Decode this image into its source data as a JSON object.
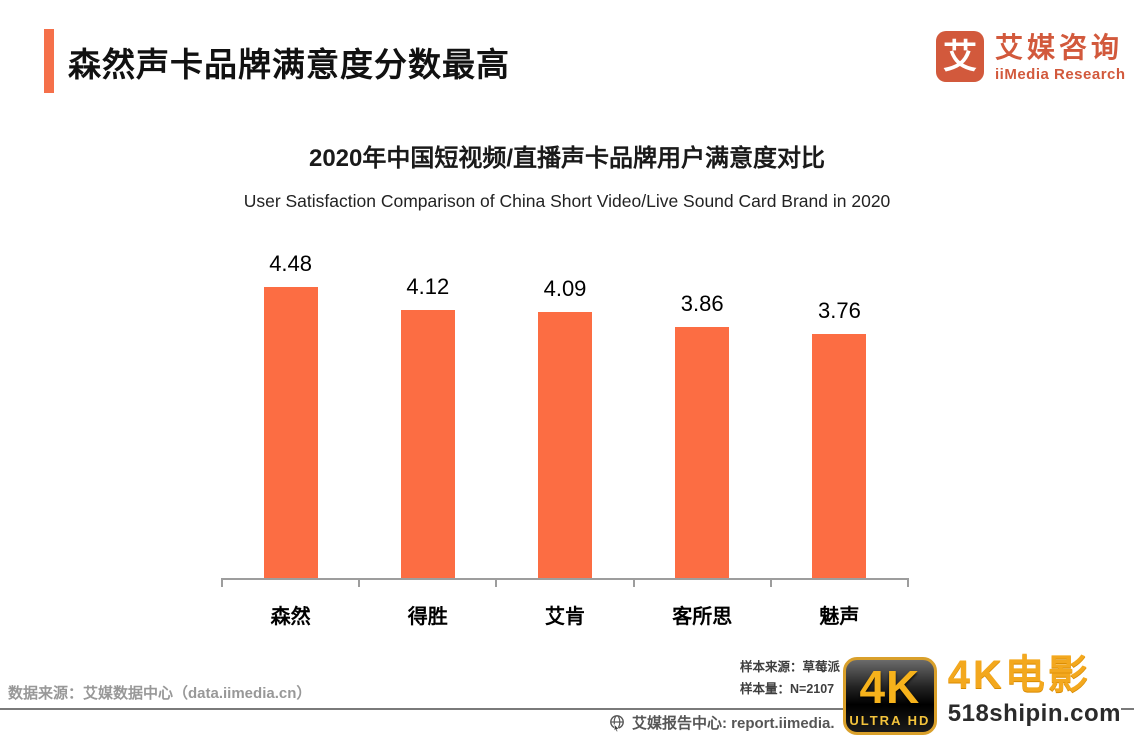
{
  "header": {
    "title": "森然声卡品牌满意度分数最高",
    "logo": {
      "glyph": "艾",
      "brand_cn": "艾媒咨询",
      "brand_en": "iiMedia Research"
    }
  },
  "chart_data": {
    "type": "bar",
    "title": "2020年中国短视频/直播声卡品牌用户满意度对比",
    "subtitle": "User Satisfaction Comparison of  China Short Video/Live Sound Card Brand in 2020",
    "categories": [
      "森然",
      "得胜",
      "艾肯",
      "客所思",
      "魅声"
    ],
    "values": [
      4.48,
      4.12,
      4.09,
      3.86,
      3.76
    ],
    "xlabel": "",
    "ylabel": "",
    "ylim": [
      0,
      4.48
    ],
    "grid": false,
    "legend": false,
    "bar_color": "#FC6D43",
    "value_labels_shown": true
  },
  "footer": {
    "data_source": "数据来源：艾媒数据中心（data.iimedia.cn）",
    "sample_source": "样本来源：草莓派",
    "sample_size": "样本量：N=2107",
    "report_center": "艾媒报告中心: report.iimedia."
  },
  "watermark": {
    "badge_top": "4K",
    "badge_bottom": "ULTRA HD",
    "title": "4K电影",
    "site": "518shipin.com"
  },
  "colors": {
    "accent": "#F5704A",
    "bar": "#FC6D43",
    "logo": "#D2593C",
    "watermark_gold": "#F3A81E"
  }
}
